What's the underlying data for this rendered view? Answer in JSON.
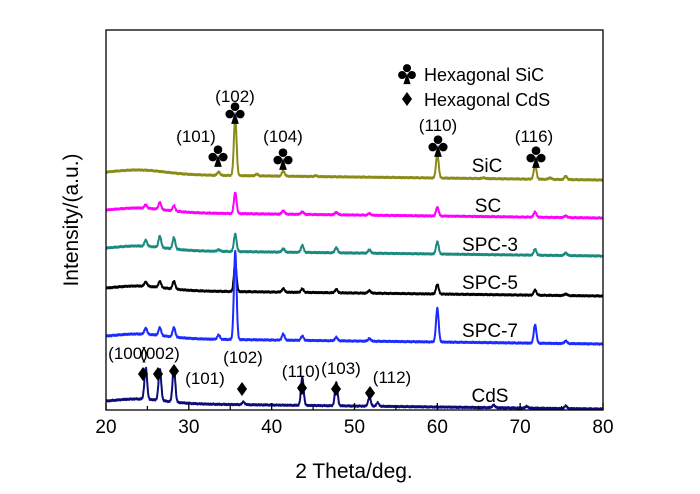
{
  "chart_data": {
    "type": "line",
    "xlabel": "2 Theta/deg.",
    "ylabel": "Intensity/(a.u.)",
    "xlim": [
      20,
      80
    ],
    "x_ticks": [
      "20",
      "30",
      "40",
      "50",
      "60",
      "70",
      "80"
    ],
    "grid": false,
    "legend_position": "top-right",
    "legend": [
      {
        "symbol": "club",
        "label": "Hexagonal SiC"
      },
      {
        "symbol": "diamond",
        "label": "Hexagonal CdS"
      }
    ],
    "series": [
      {
        "name": "SiC",
        "color": "#8b8b1a",
        "baseline": 0.05,
        "peaks": [
          [
            33.6,
            0.04
          ],
          [
            35.6,
            0.67
          ],
          [
            38.2,
            0.02
          ],
          [
            41.4,
            0.06
          ],
          [
            45.3,
            0.01
          ],
          [
            60.0,
            0.27
          ],
          [
            65.6,
            0.01
          ],
          [
            71.8,
            0.17
          ],
          [
            73.6,
            0.02
          ],
          [
            75.5,
            0.04
          ]
        ]
      },
      {
        "name": "SC",
        "color": "#ff00ff",
        "baseline": 0.05,
        "peaks": [
          [
            24.8,
            0.04
          ],
          [
            26.5,
            0.08
          ],
          [
            28.2,
            0.06
          ],
          [
            35.6,
            0.24
          ],
          [
            41.4,
            0.04
          ],
          [
            43.7,
            0.03
          ],
          [
            47.8,
            0.03
          ],
          [
            51.8,
            0.02
          ],
          [
            60.0,
            0.1
          ],
          [
            71.8,
            0.06
          ],
          [
            75.5,
            0.02
          ]
        ]
      },
      {
        "name": "SPC-3",
        "color": "#1a8a7e",
        "baseline": 0.05,
        "peaks": [
          [
            24.8,
            0.07
          ],
          [
            26.5,
            0.13
          ],
          [
            28.2,
            0.13
          ],
          [
            33.6,
            0.02
          ],
          [
            35.6,
            0.2
          ],
          [
            41.4,
            0.04
          ],
          [
            43.7,
            0.08
          ],
          [
            47.8,
            0.06
          ],
          [
            51.8,
            0.04
          ],
          [
            60.0,
            0.14
          ],
          [
            71.8,
            0.07
          ],
          [
            75.5,
            0.03
          ]
        ]
      },
      {
        "name": "SPC-5",
        "color": "#000000",
        "baseline": 0.05,
        "peaks": [
          [
            24.8,
            0.05
          ],
          [
            26.5,
            0.07
          ],
          [
            28.2,
            0.09
          ],
          [
            35.6,
            0.32
          ],
          [
            41.4,
            0.04
          ],
          [
            43.7,
            0.04
          ],
          [
            47.8,
            0.04
          ],
          [
            51.8,
            0.03
          ],
          [
            60.0,
            0.11
          ],
          [
            71.8,
            0.06
          ],
          [
            75.5,
            0.02
          ]
        ]
      },
      {
        "name": "SPC-7",
        "color": "#1c2bff",
        "baseline": 0.05,
        "peaks": [
          [
            24.8,
            0.07
          ],
          [
            26.5,
            0.09
          ],
          [
            28.2,
            0.11
          ],
          [
            33.6,
            0.05
          ],
          [
            35.6,
            1.0
          ],
          [
            41.4,
            0.07
          ],
          [
            43.7,
            0.05
          ],
          [
            47.8,
            0.04
          ],
          [
            51.8,
            0.03
          ],
          [
            60.0,
            0.38
          ],
          [
            71.8,
            0.21
          ],
          [
            75.5,
            0.03
          ]
        ]
      },
      {
        "name": "CdS",
        "color": "#0d0d7a",
        "baseline": 0.05,
        "peaks": [
          [
            24.8,
            0.36
          ],
          [
            26.5,
            0.36
          ],
          [
            28.2,
            0.4
          ],
          [
            36.6,
            0.03
          ],
          [
            43.7,
            0.32
          ],
          [
            47.8,
            0.27
          ],
          [
            51.8,
            0.1
          ],
          [
            52.8,
            0.04
          ],
          [
            66.8,
            0.03
          ],
          [
            70.8,
            0.02
          ],
          [
            75.5,
            0.03
          ]
        ]
      }
    ],
    "annotations": [
      {
        "text": "(101)",
        "marker": "club",
        "x": 33.6,
        "series": "SiC"
      },
      {
        "text": "(102)",
        "marker": "club",
        "x": 35.6,
        "series": "SiC"
      },
      {
        "text": "(104)",
        "marker": "club",
        "x": 41.4,
        "series": "SiC"
      },
      {
        "text": "(110)",
        "marker": "club",
        "x": 60.0,
        "series": "SiC"
      },
      {
        "text": "(116)",
        "marker": "club",
        "x": 71.8,
        "series": "SiC"
      },
      {
        "text": "(100)",
        "marker": "diamond",
        "x": 24.8,
        "series": "CdS"
      },
      {
        "text": "(002)",
        "marker": "diamond",
        "x": 26.5,
        "series": "CdS"
      },
      {
        "text": "(101)",
        "marker": "diamond",
        "x": 28.2,
        "series": "CdS"
      },
      {
        "text": "(102)",
        "marker": "diamond",
        "x": 36.6,
        "series": "CdS"
      },
      {
        "text": "(110)",
        "marker": "diamond",
        "x": 43.7,
        "series": "CdS"
      },
      {
        "text": "(103)",
        "marker": "diamond",
        "x": 47.8,
        "series": "CdS"
      },
      {
        "text": "(112)",
        "marker": "diamond",
        "x": 51.8,
        "series": "CdS"
      }
    ]
  }
}
